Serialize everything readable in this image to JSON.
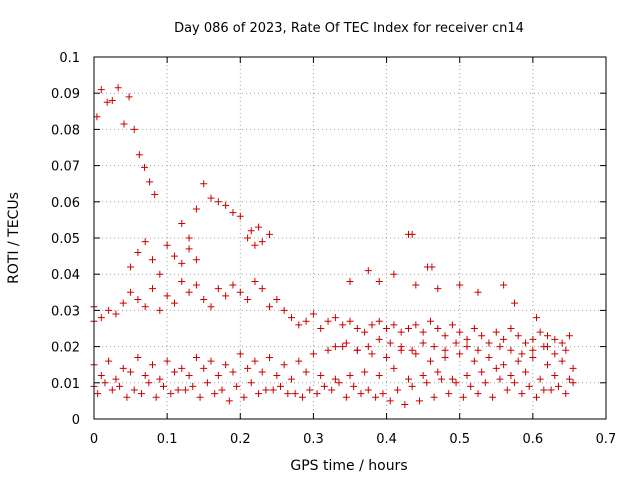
{
  "chart_data": {
    "type": "scatter",
    "title": "Day 086 of 2023, Rate Of TEC Index for receiver cn14",
    "xlabel": "GPS time / hours",
    "ylabel": "ROTI / TECUs",
    "xlim": [
      0,
      0.7
    ],
    "ylim": [
      0,
      0.1
    ],
    "xticks": [
      "0",
      "0.1",
      "0.2",
      "0.3",
      "0.4",
      "0.5",
      "0.6",
      "0.7"
    ],
    "yticks": [
      "0",
      "0.01",
      "0.02",
      "0.03",
      "0.04",
      "0.05",
      "0.06",
      "0.07",
      "0.08",
      "0.09",
      "0.1"
    ],
    "grid": true,
    "marker": "+",
    "color": "#cc0000",
    "series": [
      {
        "name": "cn14 ROTI",
        "x": [
          0.0,
          0.004,
          0.01,
          0.018,
          0.025,
          0.033,
          0.041,
          0.048,
          0.055,
          0.062,
          0.069,
          0.076,
          0.083,
          0.12,
          0.13,
          0.14,
          0.15,
          0.16,
          0.17,
          0.18,
          0.19,
          0.2,
          0.21,
          0.215,
          0.22,
          0.225,
          0.23,
          0.24,
          0.05,
          0.06,
          0.07,
          0.08,
          0.09,
          0.1,
          0.11,
          0.12,
          0.13,
          0.14,
          0.0,
          0.01,
          0.02,
          0.03,
          0.04,
          0.05,
          0.06,
          0.07,
          0.08,
          0.09,
          0.1,
          0.11,
          0.12,
          0.13,
          0.14,
          0.15,
          0.16,
          0.17,
          0.18,
          0.19,
          0.2,
          0.21,
          0.22,
          0.23,
          0.24,
          0.25,
          0.26,
          0.27,
          0.28,
          0.29,
          0.3,
          0.31,
          0.32,
          0.33,
          0.34,
          0.35,
          0.36,
          0.37,
          0.38,
          0.39,
          0.4,
          0.41,
          0.42,
          0.43,
          0.44,
          0.45,
          0.46,
          0.47,
          0.48,
          0.49,
          0.5,
          0.51,
          0.52,
          0.53,
          0.54,
          0.55,
          0.56,
          0.57,
          0.58,
          0.59,
          0.6,
          0.61,
          0.62,
          0.63,
          0.64,
          0.65,
          0.0,
          0.02,
          0.04,
          0.06,
          0.08,
          0.1,
          0.12,
          0.14,
          0.16,
          0.18,
          0.2,
          0.22,
          0.24,
          0.26,
          0.28,
          0.3,
          0.32,
          0.34,
          0.36,
          0.38,
          0.4,
          0.42,
          0.44,
          0.46,
          0.48,
          0.5,
          0.52,
          0.54,
          0.56,
          0.58,
          0.6,
          0.62,
          0.64,
          0.655,
          0.01,
          0.03,
          0.05,
          0.07,
          0.09,
          0.11,
          0.13,
          0.15,
          0.17,
          0.19,
          0.21,
          0.23,
          0.25,
          0.27,
          0.29,
          0.31,
          0.33,
          0.35,
          0.37,
          0.39,
          0.41,
          0.43,
          0.45,
          0.47,
          0.49,
          0.51,
          0.53,
          0.55,
          0.57,
          0.59,
          0.61,
          0.63,
          0.65,
          0.0,
          0.015,
          0.035,
          0.055,
          0.075,
          0.095,
          0.115,
          0.135,
          0.155,
          0.175,
          0.195,
          0.215,
          0.235,
          0.255,
          0.275,
          0.295,
          0.315,
          0.335,
          0.355,
          0.375,
          0.395,
          0.415,
          0.435,
          0.455,
          0.475,
          0.495,
          0.515,
          0.535,
          0.555,
          0.575,
          0.595,
          0.615,
          0.635,
          0.655,
          0.005,
          0.025,
          0.045,
          0.065,
          0.085,
          0.105,
          0.125,
          0.145,
          0.165,
          0.185,
          0.205,
          0.225,
          0.245,
          0.265,
          0.285,
          0.305,
          0.325,
          0.345,
          0.365,
          0.385,
          0.405,
          0.425,
          0.445,
          0.465,
          0.485,
          0.505,
          0.525,
          0.545,
          0.565,
          0.585,
          0.605,
          0.625,
          0.645,
          0.33,
          0.345,
          0.36,
          0.375,
          0.39,
          0.405,
          0.42,
          0.435,
          0.45,
          0.465,
          0.48,
          0.495,
          0.51,
          0.525,
          0.54,
          0.555,
          0.57,
          0.585,
          0.6,
          0.615,
          0.63,
          0.645,
          0.43,
          0.435,
          0.456,
          0.462,
          0.35,
          0.375,
          0.39,
          0.41,
          0.44,
          0.47,
          0.5,
          0.525,
          0.56,
          0.575,
          0.605,
          0.62
        ],
        "y": [
          0.031,
          0.0835,
          0.091,
          0.0875,
          0.088,
          0.0915,
          0.0815,
          0.089,
          0.08,
          0.073,
          0.0695,
          0.0655,
          0.062,
          0.054,
          0.05,
          0.058,
          0.065,
          0.061,
          0.06,
          0.059,
          0.057,
          0.056,
          0.05,
          0.052,
          0.048,
          0.053,
          0.049,
          0.051,
          0.042,
          0.046,
          0.049,
          0.044,
          0.04,
          0.048,
          0.045,
          0.043,
          0.047,
          0.044,
          0.027,
          0.028,
          0.03,
          0.029,
          0.032,
          0.035,
          0.033,
          0.031,
          0.036,
          0.03,
          0.034,
          0.032,
          0.038,
          0.035,
          0.037,
          0.033,
          0.031,
          0.036,
          0.034,
          0.037,
          0.035,
          0.033,
          0.038,
          0.036,
          0.031,
          0.033,
          0.03,
          0.028,
          0.026,
          0.027,
          0.029,
          0.025,
          0.027,
          0.028,
          0.026,
          0.027,
          0.025,
          0.024,
          0.026,
          0.027,
          0.025,
          0.026,
          0.024,
          0.025,
          0.026,
          0.024,
          0.027,
          0.025,
          0.023,
          0.026,
          0.024,
          0.022,
          0.025,
          0.023,
          0.021,
          0.024,
          0.022,
          0.025,
          0.023,
          0.021,
          0.022,
          0.024,
          0.02,
          0.022,
          0.021,
          0.023,
          0.015,
          0.016,
          0.014,
          0.017,
          0.015,
          0.016,
          0.014,
          0.017,
          0.016,
          0.015,
          0.018,
          0.016,
          0.017,
          0.015,
          0.016,
          0.018,
          0.019,
          0.02,
          0.019,
          0.018,
          0.017,
          0.019,
          0.018,
          0.016,
          0.017,
          0.018,
          0.016,
          0.017,
          0.015,
          0.016,
          0.017,
          0.015,
          0.016,
          0.014,
          0.012,
          0.011,
          0.013,
          0.012,
          0.011,
          0.013,
          0.012,
          0.014,
          0.012,
          0.013,
          0.014,
          0.013,
          0.012,
          0.011,
          0.013,
          0.012,
          0.011,
          0.012,
          0.013,
          0.012,
          0.014,
          0.011,
          0.012,
          0.013,
          0.011,
          0.012,
          0.013,
          0.014,
          0.012,
          0.013,
          0.011,
          0.012,
          0.011,
          0.009,
          0.01,
          0.009,
          0.008,
          0.01,
          0.009,
          0.008,
          0.009,
          0.01,
          0.008,
          0.009,
          0.01,
          0.008,
          0.009,
          0.007,
          0.008,
          0.009,
          0.01,
          0.009,
          0.008,
          0.007,
          0.008,
          0.009,
          0.01,
          0.011,
          0.01,
          0.009,
          0.01,
          0.011,
          0.01,
          0.009,
          0.008,
          0.009,
          0.01,
          0.007,
          0.008,
          0.006,
          0.007,
          0.006,
          0.007,
          0.008,
          0.006,
          0.007,
          0.005,
          0.006,
          0.007,
          0.008,
          0.007,
          0.006,
          0.007,
          0.008,
          0.006,
          0.007,
          0.006,
          0.005,
          0.004,
          0.005,
          0.006,
          0.007,
          0.006,
          0.007,
          0.006,
          0.008,
          0.007,
          0.006,
          0.008,
          0.007,
          0.02,
          0.021,
          0.019,
          0.02,
          0.022,
          0.021,
          0.02,
          0.019,
          0.021,
          0.02,
          0.019,
          0.021,
          0.02,
          0.019,
          0.021,
          0.02,
          0.019,
          0.018,
          0.019,
          0.02,
          0.018,
          0.019,
          0.051,
          0.051,
          0.042,
          0.042,
          0.038,
          0.041,
          0.038,
          0.04,
          0.037,
          0.036,
          0.037,
          0.035,
          0.037,
          0.032,
          0.028,
          0.023
        ]
      }
    ]
  }
}
